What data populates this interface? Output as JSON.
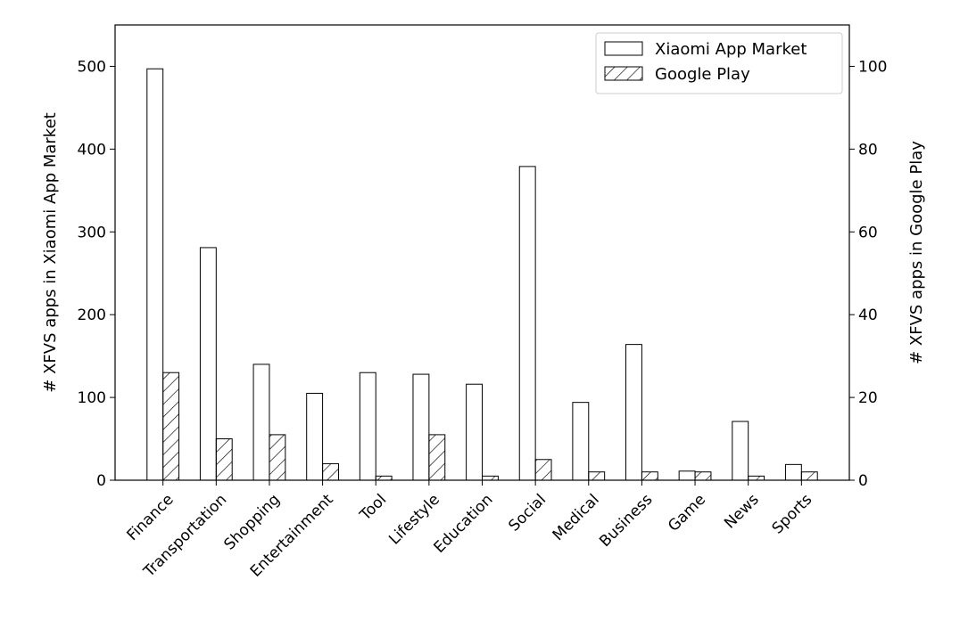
{
  "chart_data": {
    "type": "bar",
    "categories": [
      "Finance",
      "Transportation",
      "Shopping",
      "Entertainment",
      "Tool",
      "Lifestyle",
      "Education",
      "Social",
      "Medical",
      "Business",
      "Game",
      "News",
      "Sports"
    ],
    "series": [
      {
        "name": "Xiaomi App Market",
        "axis": "left",
        "values": [
          497,
          281,
          140,
          105,
          130,
          128,
          116,
          379,
          94,
          164,
          11,
          71,
          19
        ],
        "fill": "#ffffff",
        "pattern": "none"
      },
      {
        "name": "Google Play",
        "axis": "right",
        "values": [
          26,
          10,
          11,
          4,
          1,
          11,
          1,
          5,
          2,
          2,
          2,
          1,
          2
        ],
        "fill": "#ffffff",
        "pattern": "hatch"
      }
    ],
    "ylabel_left": "# XFVS apps in Xiaomi App Market",
    "ylabel_right": "# XFVS apps in Google Play",
    "ylim_left": [
      0,
      550
    ],
    "ylim_right": [
      0,
      110
    ],
    "yticks_left": [
      0,
      100,
      200,
      300,
      400,
      500
    ],
    "yticks_right": [
      0,
      20,
      40,
      60,
      80,
      100
    ],
    "grid": false,
    "legend_position": "top-right",
    "colors": {
      "edge": "#000000",
      "background": "#ffffff"
    }
  }
}
